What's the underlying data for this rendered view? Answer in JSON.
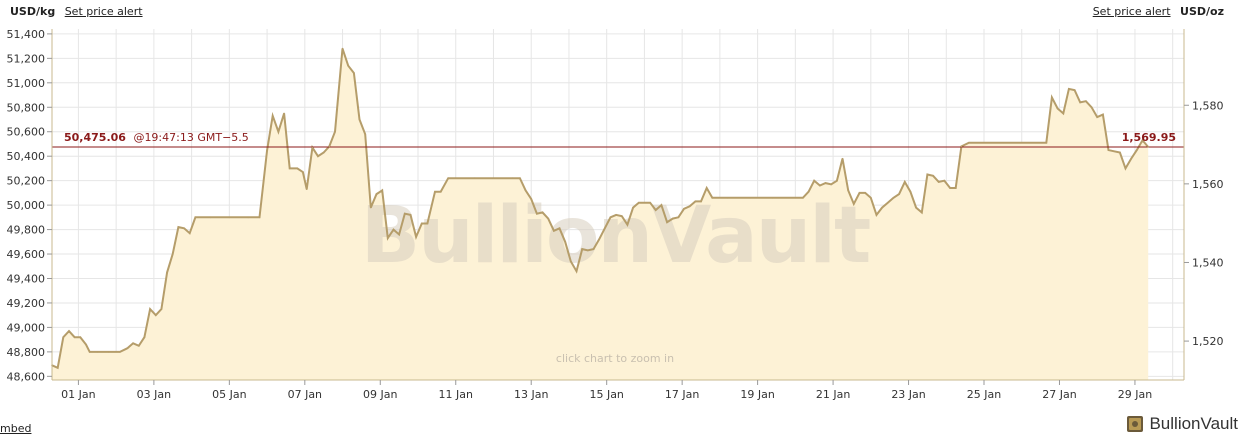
{
  "header": {
    "left_unit": "USD/kg",
    "left_alert": "Set price alert",
    "right_alert": "Set price alert",
    "right_unit": "USD/oz"
  },
  "current": {
    "value_kg": "50,475.06",
    "timestamp": "@19:47:13 GMT−5.5",
    "value_oz": "1,569.95"
  },
  "watermark": "BullionVault",
  "zoom_hint": "click chart to zoom in",
  "footer": {
    "embed": "mbed",
    "brand": "BullionVault"
  },
  "colors": {
    "line": "#b59d6a",
    "fill": "#fdf2d6",
    "price_line": "#8b1a1a",
    "grid": "#e6e6e6"
  },
  "chart_data": {
    "type": "area",
    "x_tick_labels": [
      "01 Jan",
      "03 Jan",
      "05 Jan",
      "07 Jan",
      "09 Jan",
      "11 Jan",
      "13 Jan",
      "15 Jan",
      "17 Jan",
      "19 Jan",
      "21 Jan",
      "23 Jan",
      "25 Jan",
      "27 Jan",
      "29 Jan"
    ],
    "y_left_ticks": [
      48600,
      48800,
      49000,
      49200,
      49400,
      49600,
      49800,
      50000,
      50200,
      50400,
      50600,
      50800,
      51000,
      51200,
      51400
    ],
    "y_left_tick_labels": [
      "48,600",
      "48,800",
      "49,000",
      "49,200",
      "49,400",
      "49,600",
      "49,800",
      "50,000",
      "50,200",
      "50,400",
      "50,600",
      "50,800",
      "51,000",
      "51,200",
      "51,400"
    ],
    "y_right_ticks": [
      1520,
      1540,
      1560,
      1580
    ],
    "y_right_tick_labels": [
      "1,520",
      "1,540",
      "1,560",
      "1,580"
    ],
    "ylim_left": [
      48570,
      51440
    ],
    "ylim_right": [
      1510.1,
      1599.4
    ],
    "xlim_day": [
      0.3,
      30.3
    ],
    "current_value": 50475.06,
    "grid": true,
    "points": [
      [
        0.3,
        48690
      ],
      [
        0.45,
        48670
      ],
      [
        0.6,
        48920
      ],
      [
        0.75,
        48970
      ],
      [
        0.9,
        48920
      ],
      [
        1.05,
        48920
      ],
      [
        1.2,
        48860
      ],
      [
        1.3,
        48800
      ],
      [
        1.5,
        48800
      ],
      [
        1.8,
        48800
      ],
      [
        2.1,
        48800
      ],
      [
        2.3,
        48830
      ],
      [
        2.45,
        48870
      ],
      [
        2.6,
        48850
      ],
      [
        2.75,
        48920
      ],
      [
        2.9,
        49150
      ],
      [
        3.05,
        49100
      ],
      [
        3.2,
        49150
      ],
      [
        3.35,
        49450
      ],
      [
        3.5,
        49600
      ],
      [
        3.65,
        49820
      ],
      [
        3.8,
        49810
      ],
      [
        3.95,
        49770
      ],
      [
        4.1,
        49900
      ],
      [
        4.5,
        49900
      ],
      [
        5.0,
        49900
      ],
      [
        5.5,
        49900
      ],
      [
        5.8,
        49900
      ],
      [
        6.0,
        50450
      ],
      [
        6.15,
        50730
      ],
      [
        6.3,
        50600
      ],
      [
        6.45,
        50750
      ],
      [
        6.6,
        50300
      ],
      [
        6.8,
        50300
      ],
      [
        6.95,
        50270
      ],
      [
        7.05,
        50130
      ],
      [
        7.2,
        50470
      ],
      [
        7.35,
        50400
      ],
      [
        7.5,
        50430
      ],
      [
        7.65,
        50480
      ],
      [
        7.8,
        50600
      ],
      [
        8.0,
        51280
      ],
      [
        8.15,
        51140
      ],
      [
        8.3,
        51080
      ],
      [
        8.45,
        50700
      ],
      [
        8.6,
        50580
      ],
      [
        8.75,
        49980
      ],
      [
        8.9,
        50090
      ],
      [
        9.05,
        50120
      ],
      [
        9.2,
        49730
      ],
      [
        9.35,
        49800
      ],
      [
        9.5,
        49760
      ],
      [
        9.65,
        49930
      ],
      [
        9.8,
        49920
      ],
      [
        9.95,
        49740
      ],
      [
        10.1,
        49850
      ],
      [
        10.25,
        49850
      ],
      [
        10.45,
        50110
      ],
      [
        10.6,
        50110
      ],
      [
        10.8,
        50220
      ],
      [
        11.0,
        50220
      ],
      [
        11.5,
        50220
      ],
      [
        12.0,
        50220
      ],
      [
        12.5,
        50220
      ],
      [
        12.7,
        50220
      ],
      [
        12.85,
        50120
      ],
      [
        13.0,
        50050
      ],
      [
        13.15,
        49930
      ],
      [
        13.3,
        49940
      ],
      [
        13.45,
        49890
      ],
      [
        13.6,
        49790
      ],
      [
        13.75,
        49810
      ],
      [
        13.9,
        49700
      ],
      [
        14.05,
        49540
      ],
      [
        14.2,
        49460
      ],
      [
        14.35,
        49640
      ],
      [
        14.5,
        49630
      ],
      [
        14.65,
        49640
      ],
      [
        14.8,
        49720
      ],
      [
        14.95,
        49810
      ],
      [
        15.1,
        49900
      ],
      [
        15.25,
        49920
      ],
      [
        15.4,
        49910
      ],
      [
        15.55,
        49840
      ],
      [
        15.7,
        49980
      ],
      [
        15.85,
        50020
      ],
      [
        16.0,
        50020
      ],
      [
        16.15,
        50020
      ],
      [
        16.3,
        49960
      ],
      [
        16.45,
        50000
      ],
      [
        16.6,
        49860
      ],
      [
        16.75,
        49890
      ],
      [
        16.9,
        49900
      ],
      [
        17.05,
        49970
      ],
      [
        17.2,
        49990
      ],
      [
        17.35,
        50030
      ],
      [
        17.5,
        50030
      ],
      [
        17.65,
        50140
      ],
      [
        17.8,
        50060
      ],
      [
        18.2,
        50060
      ],
      [
        18.8,
        50060
      ],
      [
        19.4,
        50060
      ],
      [
        20.0,
        50060
      ],
      [
        20.2,
        50060
      ],
      [
        20.35,
        50110
      ],
      [
        20.5,
        50200
      ],
      [
        20.65,
        50160
      ],
      [
        20.8,
        50180
      ],
      [
        20.95,
        50170
      ],
      [
        21.1,
        50200
      ],
      [
        21.25,
        50380
      ],
      [
        21.4,
        50120
      ],
      [
        21.55,
        50010
      ],
      [
        21.7,
        50100
      ],
      [
        21.85,
        50100
      ],
      [
        22.0,
        50060
      ],
      [
        22.15,
        49920
      ],
      [
        22.3,
        49980
      ],
      [
        22.45,
        50020
      ],
      [
        22.6,
        50060
      ],
      [
        22.75,
        50090
      ],
      [
        22.9,
        50190
      ],
      [
        23.05,
        50110
      ],
      [
        23.2,
        49980
      ],
      [
        23.35,
        49940
      ],
      [
        23.5,
        50250
      ],
      [
        23.65,
        50240
      ],
      [
        23.8,
        50190
      ],
      [
        23.95,
        50200
      ],
      [
        24.1,
        50140
      ],
      [
        24.25,
        50140
      ],
      [
        24.4,
        50480
      ],
      [
        24.6,
        50510
      ],
      [
        24.8,
        50510
      ],
      [
        25.5,
        50510
      ],
      [
        26.2,
        50510
      ],
      [
        26.65,
        50510
      ],
      [
        26.8,
        50880
      ],
      [
        26.95,
        50790
      ],
      [
        27.1,
        50750
      ],
      [
        27.25,
        50950
      ],
      [
        27.4,
        50940
      ],
      [
        27.55,
        50840
      ],
      [
        27.7,
        50850
      ],
      [
        27.85,
        50800
      ],
      [
        28.0,
        50720
      ],
      [
        28.15,
        50740
      ],
      [
        28.3,
        50450
      ],
      [
        28.45,
        50440
      ],
      [
        28.6,
        50430
      ],
      [
        28.75,
        50300
      ],
      [
        28.9,
        50380
      ],
      [
        29.05,
        50450
      ],
      [
        29.2,
        50530
      ],
      [
        29.35,
        50475
      ]
    ]
  }
}
